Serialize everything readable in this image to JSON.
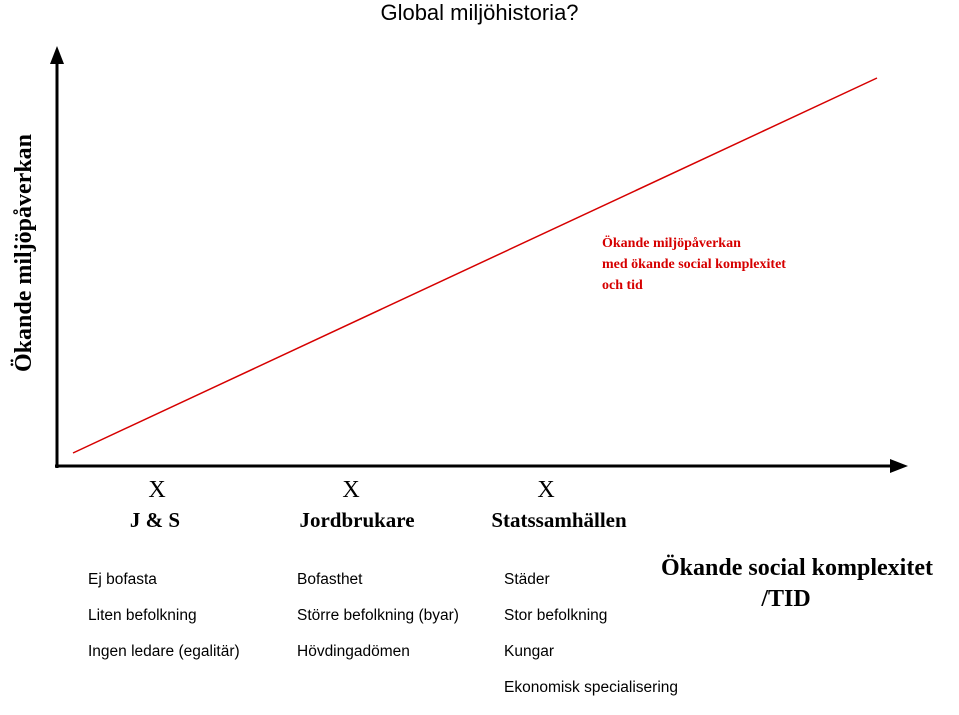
{
  "title": "Global miljöhistoria?",
  "y_axis_title": "Ökande miljöpåverkan",
  "x_axis_title": {
    "line1": "Ökande social komplexitet",
    "line2": "/TID"
  },
  "trend_note": {
    "line1": "Ökande miljöpåverkan",
    "line2": "med ökande social komplexitet",
    "line3": "och tid",
    "color": "#d60000"
  },
  "stages": [
    {
      "marker": "X",
      "name": "J & S"
    },
    {
      "marker": "X",
      "name": "Jordbrukare"
    },
    {
      "marker": "X",
      "name": "Statssamhällen"
    }
  ],
  "columns": [
    {
      "lines": [
        "Ej bofasta",
        "Liten befolkning",
        "Ingen ledare (egalitär)"
      ]
    },
    {
      "lines": [
        "Bofasthet",
        "Större befolkning (byar)",
        "Hövdingadömen"
      ]
    },
    {
      "lines": [
        "Städer",
        "Stor befolkning",
        "Kungar",
        "Ekonomisk specialisering"
      ]
    }
  ],
  "colors": {
    "trend_line": "#d60000",
    "axis": "#000000"
  }
}
